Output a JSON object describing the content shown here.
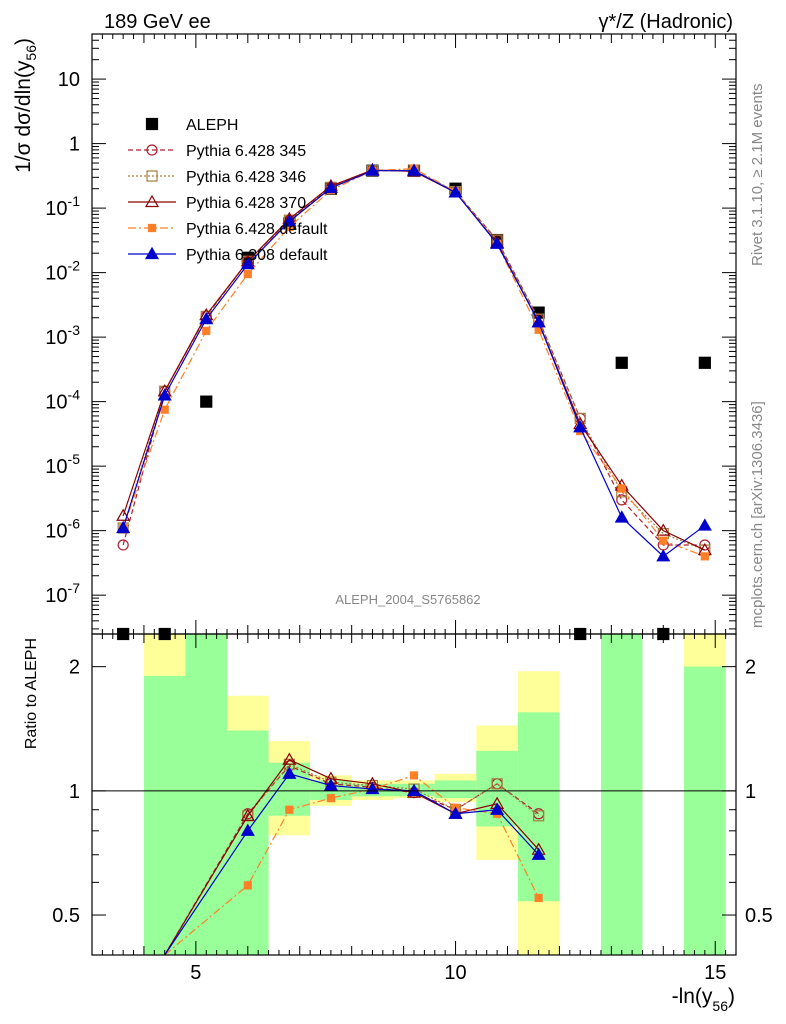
{
  "header": {
    "left": "189 GeV ee",
    "right": "γ*/Z (Hadronic)"
  },
  "side": {
    "rivet": "Rivet 3.1.10, ≥ 2.1M events",
    "mcplots": "mcplots.cern.ch [arXiv:1306.3436]"
  },
  "watermark": "ALEPH_2004_S5765862",
  "colors": {
    "aleph": "#000000",
    "p345": "#b02030",
    "p346": "#a08040",
    "p370": "#8b0000",
    "pdefault": "#ff7f27",
    "p308": "#0000cd",
    "band_inner": "#99ff99",
    "band_outer": "#ffff99"
  },
  "chart_data": [
    {
      "type": "scatter",
      "ylabel": "1/σ dσ/dln(y56)",
      "xlabel": "",
      "yscale": "log",
      "xlim": [
        3,
        15.4
      ],
      "ylim": [
        2.5e-08,
        50
      ],
      "y_ticks": [
        "10",
        "1",
        "10^-1",
        "10^-2",
        "10^-3",
        "10^-4",
        "10^-5",
        "10^-6",
        "10^-7"
      ],
      "legend_position": "upper-left",
      "x": [
        3.6,
        4.4,
        5.2,
        6.0,
        6.8,
        7.6,
        8.4,
        9.2,
        10.0,
        10.8,
        11.6,
        12.4,
        13.2,
        14.0,
        14.8
      ],
      "series": [
        {
          "name": "ALEPH",
          "style": "data",
          "values": [
            2.4e-08,
            2.4e-08,
            0.0001,
            0.017,
            0.058,
            0.2,
            0.38,
            0.38,
            0.2,
            0.032,
            0.0024,
            2.4e-08,
            0.0004,
            2.4e-08,
            0.0004
          ]
        },
        {
          "name": "Pythia 6.428 345",
          "style": "p345",
          "values": [
            6e-07,
            0.000145,
            0.0021,
            0.015,
            0.065,
            0.21,
            0.38,
            0.38,
            0.18,
            0.032,
            0.0019,
            5.5e-05,
            3e-06,
            6e-07,
            6e-07
          ]
        },
        {
          "name": "Pythia 6.428 346",
          "style": "p346",
          "values": [
            1.1e-06,
            0.000145,
            0.0021,
            0.015,
            0.065,
            0.21,
            0.38,
            0.39,
            0.18,
            0.032,
            0.0019,
            5.5e-05,
            4e-06,
            9e-07,
            5e-07
          ]
        },
        {
          "name": "Pythia 6.428 370",
          "style": "p370",
          "values": [
            1.7e-06,
            0.000145,
            0.0022,
            0.015,
            0.068,
            0.22,
            0.39,
            0.37,
            0.175,
            0.029,
            0.0017,
            4.5e-05,
            5e-06,
            1e-06,
            5e-07
          ]
        },
        {
          "name": "Pythia 6.428 default",
          "style": "pdefault",
          "values": [
            1.1e-06,
            7.5e-05,
            0.00125,
            0.0095,
            0.051,
            0.19,
            0.38,
            0.41,
            0.18,
            0.028,
            0.0013,
            3.5e-05,
            4.5e-06,
            7e-07,
            4e-07
          ]
        },
        {
          "name": "Pythia 6.308 default",
          "style": "p308",
          "values": [
            1.1e-06,
            0.000125,
            0.0019,
            0.0135,
            0.062,
            0.205,
            0.38,
            0.38,
            0.175,
            0.028,
            0.0017,
            4e-05,
            1.6e-06,
            4e-07,
            1.2e-06
          ]
        }
      ]
    },
    {
      "type": "line",
      "ylabel": "Ratio to ALEPH",
      "xlabel": "-ln(y56)",
      "yscale": "log",
      "xlim": [
        3,
        15.4
      ],
      "ylim": [
        0.4,
        2.4
      ],
      "x_ticks": [
        "5",
        "10",
        "15"
      ],
      "y_ticks": [
        "0.5",
        "1",
        "2"
      ],
      "uncertainty_bands": {
        "x_low": [
          3.2,
          4.0,
          4.8,
          5.6,
          6.4,
          7.2,
          8.0,
          8.8,
          9.6,
          10.4,
          11.2,
          12.0,
          12.8,
          13.6,
          14.4
        ],
        "x_high": [
          4.0,
          4.8,
          5.6,
          6.4,
          7.2,
          8.0,
          8.8,
          9.6,
          10.4,
          11.2,
          12.0,
          12.8,
          13.6,
          14.4,
          15.2
        ],
        "inner_low": [
          null,
          0.3,
          0.3,
          0.3,
          0.87,
          0.95,
          0.97,
          0.97,
          0.96,
          0.82,
          0.54,
          null,
          0.3,
          null,
          0.3
        ],
        "inner_high": [
          null,
          1.9,
          2.4,
          1.4,
          1.17,
          1.06,
          1.04,
          1.04,
          1.06,
          1.25,
          1.55,
          null,
          2.4,
          null,
          2.0
        ],
        "outer_low": [
          null,
          0.3,
          0.3,
          0.3,
          0.78,
          0.92,
          0.95,
          0.96,
          0.94,
          0.68,
          0.3,
          null,
          0.3,
          null,
          0.3
        ],
        "outer_high": [
          null,
          2.4,
          2.4,
          1.7,
          1.32,
          1.09,
          1.06,
          1.06,
          1.1,
          1.44,
          1.95,
          null,
          2.4,
          null,
          2.4
        ]
      },
      "x": [
        4.4,
        6.0,
        6.8,
        7.6,
        8.4,
        9.2,
        10.0,
        10.8,
        11.6
      ],
      "series": [
        {
          "name": "Pythia 6.428 345",
          "style": "p345",
          "values": [
            0.3,
            0.88,
            1.15,
            1.04,
            1.02,
            0.99,
            0.9,
            1.04,
            0.88
          ]
        },
        {
          "name": "Pythia 6.428 346",
          "style": "p346",
          "values": [
            0.3,
            0.87,
            1.16,
            1.05,
            1.03,
            1.01,
            0.9,
            1.04,
            0.87
          ]
        },
        {
          "name": "Pythia 6.428 370",
          "style": "p370",
          "values": [
            0.3,
            0.87,
            1.19,
            1.07,
            1.04,
            0.99,
            0.88,
            0.93,
            0.72
          ]
        },
        {
          "name": "Pythia 6.428 default",
          "style": "pdefault",
          "values": [
            0.3,
            0.59,
            0.9,
            0.96,
            1.01,
            1.09,
            0.91,
            0.88,
            0.55
          ]
        },
        {
          "name": "Pythia 6.308 default",
          "style": "p308",
          "values": [
            0.3,
            0.8,
            1.1,
            1.03,
            1.01,
            1.0,
            0.88,
            0.9,
            0.7
          ]
        }
      ]
    }
  ]
}
